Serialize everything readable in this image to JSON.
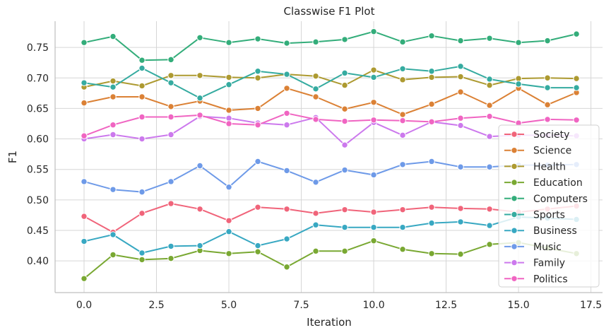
{
  "chart_data": {
    "type": "line",
    "title": "Classwise F1 Plot",
    "xlabel": "Iteration",
    "ylabel": "F1",
    "xlim": [
      -1.0,
      17.9
    ],
    "ylim": [
      0.348,
      0.793
    ],
    "xticks": [
      0.0,
      2.5,
      5.0,
      7.5,
      10.0,
      12.5,
      15.0,
      17.5
    ],
    "xtick_labels": [
      "0.0",
      "2.5",
      "5.0",
      "7.5",
      "10.0",
      "12.5",
      "15.0",
      "17.5"
    ],
    "yticks": [
      0.4,
      0.45,
      0.5,
      0.55,
      0.6,
      0.65,
      0.7,
      0.75
    ],
    "ytick_labels": [
      "0.40",
      "0.45",
      "0.50",
      "0.55",
      "0.60",
      "0.65",
      "0.70",
      "0.75"
    ],
    "grid": true,
    "legend_position": "bottom-right",
    "x": [
      0,
      1,
      2,
      3,
      4,
      5,
      6,
      7,
      8,
      9,
      10,
      11,
      12,
      13,
      14,
      15,
      16,
      17
    ],
    "series": [
      {
        "name": "Society",
        "color": "#f0647a",
        "values": [
          0.473,
          0.447,
          0.478,
          0.494,
          0.485,
          0.466,
          0.488,
          0.485,
          0.478,
          0.484,
          0.48,
          0.484,
          0.488,
          0.486,
          0.485,
          0.48,
          0.485,
          0.49
        ]
      },
      {
        "name": "Science",
        "color": "#db8135",
        "values": [
          0.659,
          0.669,
          0.669,
          0.653,
          0.662,
          0.647,
          0.65,
          0.683,
          0.669,
          0.649,
          0.66,
          0.64,
          0.657,
          0.677,
          0.655,
          0.683,
          0.656,
          0.676
        ]
      },
      {
        "name": "Health",
        "color": "#ad9a31",
        "values": [
          0.685,
          0.695,
          0.687,
          0.704,
          0.704,
          0.701,
          0.7,
          0.706,
          0.703,
          0.688,
          0.713,
          0.697,
          0.701,
          0.702,
          0.688,
          0.699,
          0.7,
          0.699
        ]
      },
      {
        "name": "Education",
        "color": "#79a832",
        "values": [
          0.371,
          0.41,
          0.402,
          0.404,
          0.417,
          0.412,
          0.415,
          0.39,
          0.416,
          0.416,
          0.433,
          0.419,
          0.412,
          0.411,
          0.427,
          0.43,
          0.421,
          0.412
        ]
      },
      {
        "name": "Computers",
        "color": "#33ad7a",
        "values": [
          0.758,
          0.768,
          0.729,
          0.73,
          0.766,
          0.758,
          0.764,
          0.757,
          0.759,
          0.763,
          0.776,
          0.759,
          0.769,
          0.761,
          0.765,
          0.758,
          0.761,
          0.772
        ]
      },
      {
        "name": "Sports",
        "color": "#35aba0",
        "values": [
          0.692,
          0.685,
          0.716,
          0.692,
          0.667,
          0.689,
          0.711,
          0.706,
          0.682,
          0.708,
          0.701,
          0.715,
          0.711,
          0.719,
          0.698,
          0.69,
          0.684,
          0.684
        ]
      },
      {
        "name": "Business",
        "color": "#38a8c2",
        "values": [
          0.432,
          0.443,
          0.413,
          0.424,
          0.425,
          0.448,
          0.425,
          0.436,
          0.459,
          0.455,
          0.455,
          0.455,
          0.462,
          0.464,
          0.458,
          0.472,
          0.47,
          0.468
        ]
      },
      {
        "name": "Music",
        "color": "#6e9ae8",
        "values": [
          0.53,
          0.517,
          0.513,
          0.53,
          0.556,
          0.521,
          0.563,
          0.548,
          0.529,
          0.549,
          0.541,
          0.558,
          0.563,
          0.554,
          0.554,
          0.557,
          0.557,
          0.558
        ]
      },
      {
        "name": "Family",
        "color": "#cc79ed",
        "values": [
          0.6,
          0.607,
          0.6,
          0.607,
          0.637,
          0.634,
          0.626,
          0.623,
          0.635,
          0.59,
          0.627,
          0.606,
          0.628,
          0.622,
          0.604,
          0.606,
          0.606,
          0.605
        ]
      },
      {
        "name": "Politics",
        "color": "#f065c2",
        "values": [
          0.605,
          0.623,
          0.636,
          0.636,
          0.639,
          0.625,
          0.623,
          0.642,
          0.632,
          0.629,
          0.631,
          0.63,
          0.628,
          0.634,
          0.637,
          0.626,
          0.632,
          0.631
        ]
      }
    ]
  }
}
